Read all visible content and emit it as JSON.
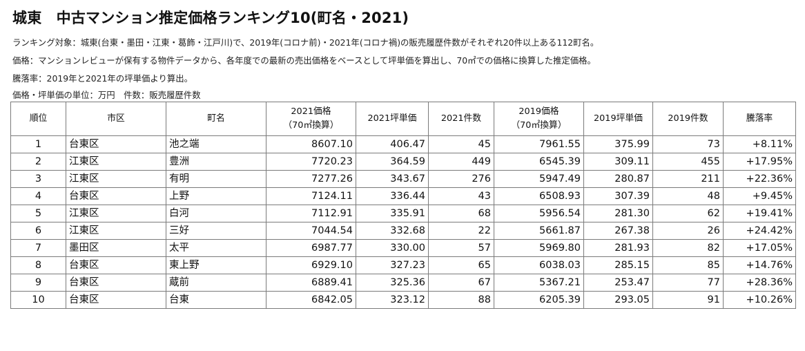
{
  "title": "城東　中古マンション推定価格ランキング10(町名・2021)",
  "notes": [
    "ランキング対象：城東(台東・墨田・江東・葛飾・江戸川)で、2019年(コロナ前)・2021年(コロナ禍)の販売履歴件数がそれぞれ20件以上ある112町名。",
    "価格：マンションレビューが保有する物件データから、各年度での最新の売出価格をベースとして坪単価を算出し、70㎡での価格に換算した推定価格。",
    "騰落率：2019年と2021年の坪単価より算出。",
    "価格・坪単価の単位：万円　件数：販売履歴件数"
  ],
  "headers": {
    "rank": "順位",
    "ward": "市区",
    "town": "町名",
    "price2021_line1": "2021価格",
    "price2021_line2": "（70㎡換算）",
    "tsubo2021": "2021坪単価",
    "count2021": "2021件数",
    "price2019_line1": "2019価格",
    "price2019_line2": "（70㎡換算）",
    "tsubo2019": "2019坪単価",
    "count2019": "2019件数",
    "change": "騰落率"
  },
  "rows": [
    {
      "rank": "1",
      "ward": "台東区",
      "town": "池之端",
      "price2021": "8607.10",
      "tsubo2021": "406.47",
      "count2021": "45",
      "price2019": "7961.55",
      "tsubo2019": "375.99",
      "count2019": "73",
      "change": "+8.11%"
    },
    {
      "rank": "2",
      "ward": "江東区",
      "town": "豊洲",
      "price2021": "7720.23",
      "tsubo2021": "364.59",
      "count2021": "449",
      "price2019": "6545.39",
      "tsubo2019": "309.11",
      "count2019": "455",
      "change": "+17.95%"
    },
    {
      "rank": "3",
      "ward": "江東区",
      "town": "有明",
      "price2021": "7277.26",
      "tsubo2021": "343.67",
      "count2021": "276",
      "price2019": "5947.49",
      "tsubo2019": "280.87",
      "count2019": "211",
      "change": "+22.36%"
    },
    {
      "rank": "4",
      "ward": "台東区",
      "town": "上野",
      "price2021": "7124.11",
      "tsubo2021": "336.44",
      "count2021": "43",
      "price2019": "6508.93",
      "tsubo2019": "307.39",
      "count2019": "48",
      "change": "+9.45%"
    },
    {
      "rank": "5",
      "ward": "江東区",
      "town": "白河",
      "price2021": "7112.91",
      "tsubo2021": "335.91",
      "count2021": "68",
      "price2019": "5956.54",
      "tsubo2019": "281.30",
      "count2019": "62",
      "change": "+19.41%"
    },
    {
      "rank": "6",
      "ward": "江東区",
      "town": "三好",
      "price2021": "7044.54",
      "tsubo2021": "332.68",
      "count2021": "22",
      "price2019": "5661.87",
      "tsubo2019": "267.38",
      "count2019": "26",
      "change": "+24.42%"
    },
    {
      "rank": "7",
      "ward": "墨田区",
      "town": "太平",
      "price2021": "6987.77",
      "tsubo2021": "330.00",
      "count2021": "57",
      "price2019": "5969.80",
      "tsubo2019": "281.93",
      "count2019": "82",
      "change": "+17.05%"
    },
    {
      "rank": "8",
      "ward": "台東区",
      "town": "東上野",
      "price2021": "6929.10",
      "tsubo2021": "327.23",
      "count2021": "65",
      "price2019": "6038.03",
      "tsubo2019": "285.15",
      "count2019": "85",
      "change": "+14.76%"
    },
    {
      "rank": "9",
      "ward": "台東区",
      "town": "蔵前",
      "price2021": "6889.41",
      "tsubo2021": "325.36",
      "count2021": "67",
      "price2019": "5367.21",
      "tsubo2019": "253.47",
      "count2019": "77",
      "change": "+28.36%"
    },
    {
      "rank": "10",
      "ward": "台東区",
      "town": "台東",
      "price2021": "6842.05",
      "tsubo2021": "323.12",
      "count2021": "88",
      "price2019": "6205.39",
      "tsubo2019": "293.05",
      "count2019": "91",
      "change": "+10.26%"
    }
  ]
}
